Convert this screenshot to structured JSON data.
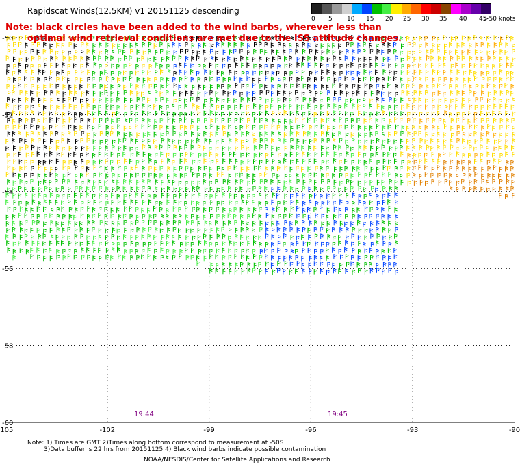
{
  "header": {
    "title": "Rapidscat Winds(12.5KM)  v1  20151125  descending",
    "note_line1": "Note: black circles have been added to the wind barbs, wherever less than",
    "note_line2": "optimal wind retrieval conditions are met due to the ISS attitude changes."
  },
  "legend": {
    "labels": [
      "0",
      "5",
      "10",
      "15",
      "20",
      "25",
      "30",
      "35",
      "40",
      "45",
      ">50 knots"
    ],
    "colors": [
      "#202020",
      "#555555",
      "#999999",
      "#d0d0d0",
      "#00aaff",
      "#0044ff",
      "#00c000",
      "#44ee44",
      "#ffee00",
      "#ffaa00",
      "#ff6600",
      "#ff0000",
      "#cc0000",
      "#884400",
      "#ff00ff",
      "#aa00cc",
      "#6600aa",
      "#330066"
    ]
  },
  "axes": {
    "lat_labels": [
      "-50",
      "-52",
      "-54",
      "-56",
      "-58",
      "-60"
    ],
    "lon_labels": [
      "-105",
      "-102",
      "-99",
      "-96",
      "-93",
      "-90"
    ]
  },
  "times": [
    "19:44",
    "19:45"
  ],
  "footer": {
    "line1": "Note: 1) Times are GMT 2)Times along bottom correspond to measurement at -50S",
    "line2": "3)Data buffer is 22 hrs from 20151125 4) Black wind barbs indicate possible contamination",
    "line3": "NOAA/NESDIS/Center for Satellite Applications and Research"
  }
}
